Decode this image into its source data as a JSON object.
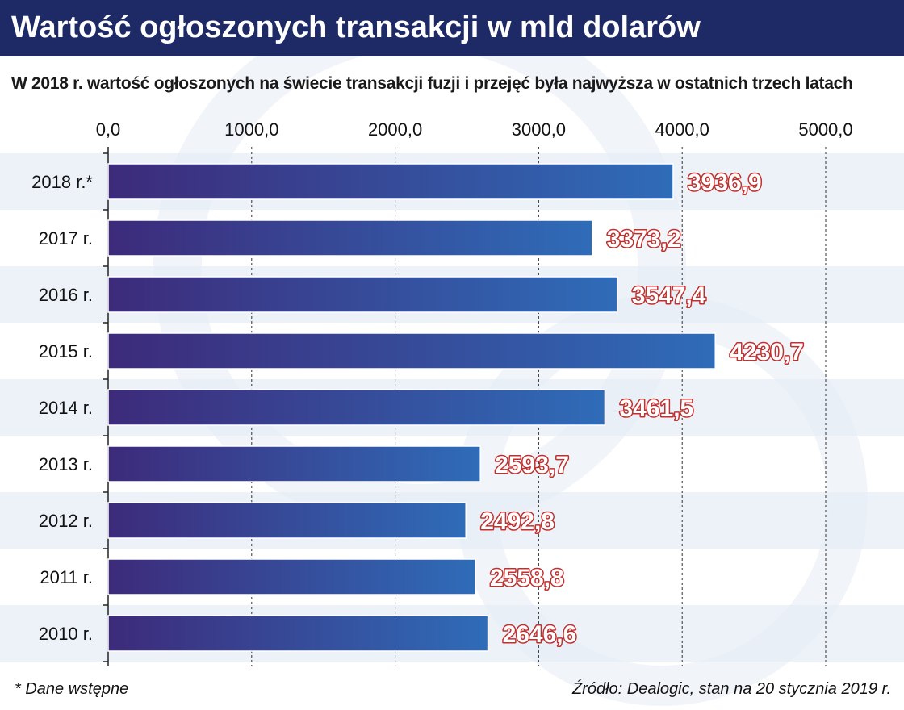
{
  "header": {
    "title": "Wartość ogłoszonych transakcji w mld dolarów",
    "subtitle": "W 2018 r. wartość ogłoszonych na świecie transakcji fuzji i przejęć była najwyższa w ostatnich trzech latach"
  },
  "chart_data": {
    "type": "bar",
    "orientation": "horizontal",
    "categories": [
      "2018 r.*",
      "2017 r.",
      "2016 r.",
      "2015 r.",
      "2014 r.",
      "2013 r.",
      "2012 r.",
      "2011 r.",
      "2010 r."
    ],
    "values": [
      3936.9,
      3373.2,
      3547.4,
      4230.7,
      3461.5,
      2593.7,
      2492.8,
      2558.8,
      2646.6
    ],
    "value_labels": [
      "3936,9",
      "3373,2",
      "3547,4",
      "4230,7",
      "3461,5",
      "2593,7",
      "2492,8",
      "2558,8",
      "2646,6"
    ],
    "x_ticks": [
      0,
      1000,
      2000,
      3000,
      4000,
      5000
    ],
    "x_tick_labels": [
      "0,0",
      "1000,0",
      "2000,0",
      "3000,0",
      "4000,0",
      "5000,0"
    ],
    "xlim": [
      0,
      5000
    ],
    "axis_position": "top",
    "grid": "vertical dashed",
    "legend": "none"
  },
  "footer": {
    "note": "* Dane wstępne",
    "source": "Źródło: Dealogic, stan na 20 stycznia 2019 r."
  },
  "colors": {
    "header_bg": "#1e2a66",
    "bar_start": "#3d2a7a",
    "bar_end": "#2f6cb8",
    "row_band": "#e6edf6",
    "label_outline": "#c0302e"
  }
}
